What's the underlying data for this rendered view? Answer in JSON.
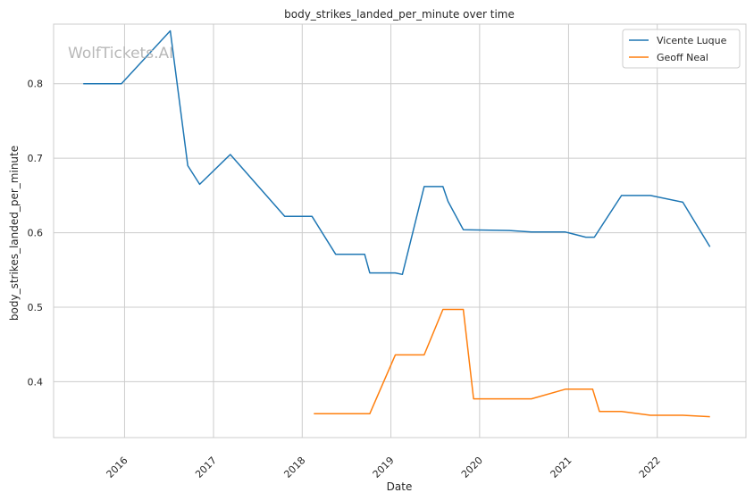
{
  "watermark": "WolfTickets.AI",
  "chart_data": {
    "type": "line",
    "title": "body_strikes_landed_per_minute over time",
    "xlabel": "Date",
    "ylabel": "body_strikes_landed_per_minute",
    "x_ticks": [
      "2016",
      "2017",
      "2018",
      "2019",
      "2020",
      "2021",
      "2022"
    ],
    "y_ticks": [
      "0.4",
      "0.5",
      "0.6",
      "0.7",
      "0.8"
    ],
    "xlim": [
      "2015-03-15",
      "2023-01-01"
    ],
    "ylim": [
      0.325,
      0.88
    ],
    "grid": true,
    "legend_position": "top-right",
    "series": [
      {
        "name": "Vicente Luque",
        "color": "#1f77b4",
        "points": [
          [
            "2015-07-15",
            0.8
          ],
          [
            "2015-12-19",
            0.8
          ],
          [
            "2016-07-07",
            0.871
          ],
          [
            "2016-09-17",
            0.69
          ],
          [
            "2016-11-05",
            0.665
          ],
          [
            "2017-03-11",
            0.705
          ],
          [
            "2017-10-21",
            0.622
          ],
          [
            "2018-02-10",
            0.622
          ],
          [
            "2018-05-19",
            0.571
          ],
          [
            "2018-09-15",
            0.571
          ],
          [
            "2018-10-06",
            0.546
          ],
          [
            "2019-01-19",
            0.546
          ],
          [
            "2019-02-17",
            0.544
          ],
          [
            "2019-05-18",
            0.662
          ],
          [
            "2019-08-03",
            0.662
          ],
          [
            "2019-08-24",
            0.642
          ],
          [
            "2019-10-26",
            0.604
          ],
          [
            "2020-05-02",
            0.603
          ],
          [
            "2020-08-01",
            0.601
          ],
          [
            "2020-12-19",
            0.601
          ],
          [
            "2021-03-13",
            0.594
          ],
          [
            "2021-04-17",
            0.594
          ],
          [
            "2021-08-07",
            0.65
          ],
          [
            "2021-12-04",
            0.65
          ],
          [
            "2022-04-16",
            0.641
          ],
          [
            "2022-08-06",
            0.581
          ]
        ]
      },
      {
        "name": "Geoff Neal",
        "color": "#ff7f0e",
        "points": [
          [
            "2018-02-18",
            0.357
          ],
          [
            "2018-10-06",
            0.357
          ],
          [
            "2019-01-19",
            0.436
          ],
          [
            "2019-05-18",
            0.436
          ],
          [
            "2019-08-03",
            0.497
          ],
          [
            "2019-10-26",
            0.497
          ],
          [
            "2019-12-07",
            0.377
          ],
          [
            "2020-08-01",
            0.377
          ],
          [
            "2020-12-19",
            0.39
          ],
          [
            "2021-04-10",
            0.39
          ],
          [
            "2021-05-08",
            0.36
          ],
          [
            "2021-08-07",
            0.36
          ],
          [
            "2021-12-04",
            0.355
          ],
          [
            "2022-04-16",
            0.355
          ],
          [
            "2022-08-06",
            0.353
          ]
        ]
      }
    ]
  }
}
